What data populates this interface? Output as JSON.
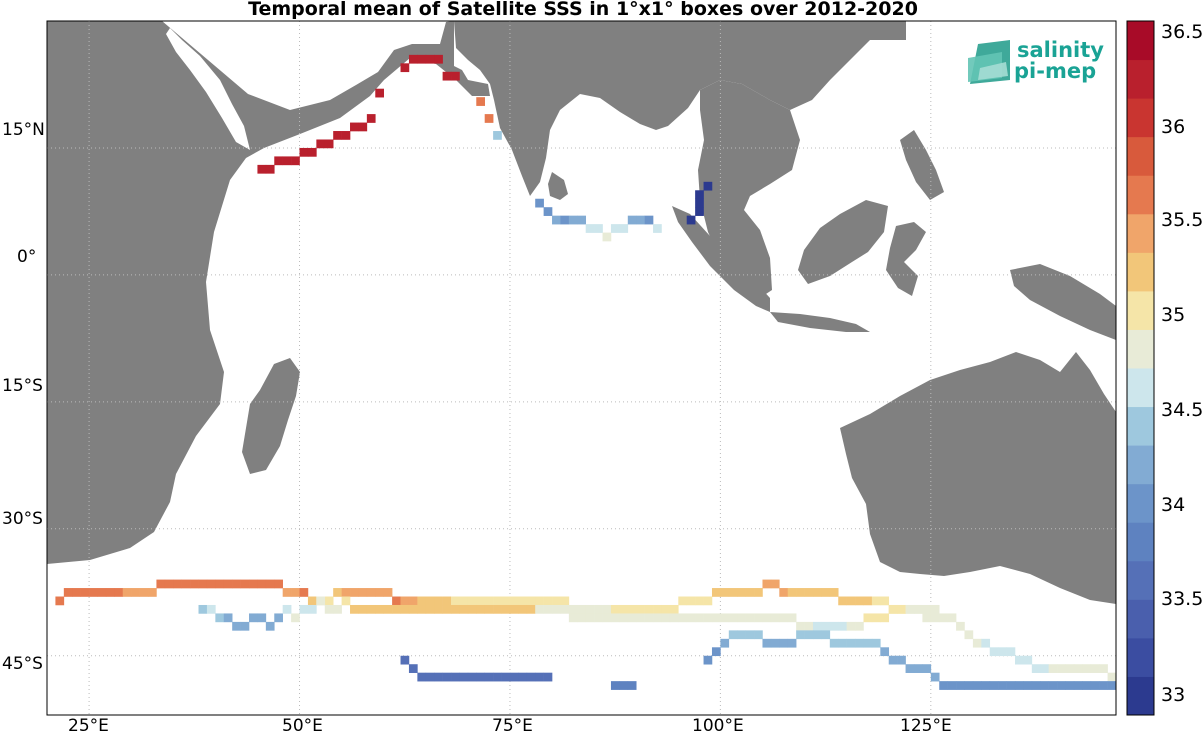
{
  "title": "Temporal mean of Satellite SSS in 1°x1° boxes over 2012-2020",
  "logo": {
    "line1": "salinity",
    "line2": "pi-mep"
  },
  "lat_labels": [
    "15°N",
    "0°",
    "15°S",
    "30°S",
    "45°S"
  ],
  "lon_labels": [
    "25°E",
    "50°E",
    "75°E",
    "100°E",
    "125°E"
  ],
  "colorbar": {
    "labels": [
      "36.5",
      "36",
      "35.5",
      "35",
      "34.5",
      "34",
      "33.5",
      "33"
    ],
    "range": [
      32.9,
      36.6
    ],
    "colors": [
      "#2c3a8f",
      "#3b4da1",
      "#4a5fad",
      "#5570b7",
      "#5e82c0",
      "#6c94c9",
      "#82abd3",
      "#9ec8de",
      "#cde6ec",
      "#e8ebd7",
      "#f5e5a8",
      "#f2c679",
      "#f0a56a",
      "#e5794f",
      "#d85a3c",
      "#c93530",
      "#b9202d",
      "#a80b28"
    ]
  },
  "map": {
    "land_color": "#808080",
    "lon_range": [
      20,
      147
    ],
    "lat_range": [
      -52,
      30
    ],
    "grid": "dotted"
  },
  "sss_cells": {
    "northwest_arabian_sea_coast": [
      [
        45,
        12,
        36.3
      ],
      [
        46,
        12,
        36.3
      ],
      [
        47,
        13,
        36.3
      ],
      [
        48,
        13,
        36.3
      ],
      [
        49,
        13,
        36.3
      ],
      [
        50,
        14,
        36.3
      ],
      [
        51,
        14,
        36.3
      ],
      [
        52,
        15,
        36.3
      ],
      [
        53,
        15,
        36.3
      ],
      [
        54,
        16,
        36.3
      ],
      [
        55,
        16,
        36.3
      ],
      [
        56,
        17,
        36.3
      ],
      [
        57,
        17,
        36.3
      ],
      [
        58,
        18,
        36.3
      ],
      [
        59,
        21,
        36.3
      ],
      [
        62,
        24,
        36.3
      ],
      [
        63,
        25,
        36.3
      ],
      [
        64,
        25,
        36.3
      ],
      [
        65,
        25,
        36.3
      ],
      [
        66,
        25,
        36.3
      ],
      [
        67,
        23,
        36.3
      ],
      [
        68,
        23,
        36.3
      ]
    ],
    "west_india_coast": [
      [
        71,
        20,
        35.7
      ],
      [
        72,
        18,
        35.7
      ],
      [
        73,
        16,
        34.5
      ]
    ],
    "sri_lanka_south": [
      [
        78,
        8,
        34.1
      ],
      [
        79,
        7,
        34.1
      ],
      [
        80,
        6,
        34.3
      ]
    ],
    "andaman_coast": [
      [
        97,
        9,
        33.1
      ],
      [
        98,
        10,
        33.1
      ],
      [
        97,
        8,
        33.1
      ],
      [
        97,
        7,
        33.1
      ],
      [
        96,
        6,
        33.1
      ]
    ],
    "bay_of_bengal_south": [
      [
        81,
        6,
        34.1
      ],
      [
        82,
        6,
        34.3
      ],
      [
        83,
        6,
        34.3
      ],
      [
        84,
        5,
        34.6
      ],
      [
        85,
        5,
        34.6
      ],
      [
        86,
        4,
        34.8
      ],
      [
        87,
        5,
        34.6
      ],
      [
        88,
        5,
        34.6
      ],
      [
        89,
        6,
        34.2
      ],
      [
        90,
        6,
        34.2
      ],
      [
        91,
        6,
        34.1
      ],
      [
        92,
        5,
        34.6
      ]
    ],
    "southern_frontal_band_north": [
      [
        21,
        -39,
        35.6
      ],
      [
        22,
        -38,
        35.6
      ],
      [
        23,
        -38,
        35.6
      ],
      [
        24,
        -38,
        35.6
      ],
      [
        25,
        -38,
        35.6
      ],
      [
        26,
        -38,
        35.6
      ],
      [
        27,
        -38,
        35.6
      ],
      [
        28,
        -38,
        35.6
      ],
      [
        29,
        -38,
        35.4
      ],
      [
        30,
        -38,
        35.4
      ],
      [
        31,
        -38,
        35.4
      ],
      [
        32,
        -38,
        35.4
      ],
      [
        33,
        -37,
        35.6
      ],
      [
        34,
        -37,
        35.6
      ],
      [
        35,
        -37,
        35.6
      ],
      [
        36,
        -37,
        35.6
      ],
      [
        37,
        -37,
        35.6
      ],
      [
        38,
        -37,
        35.6
      ],
      [
        39,
        -37,
        35.6
      ],
      [
        40,
        -37,
        35.6
      ],
      [
        41,
        -37,
        35.6
      ],
      [
        42,
        -37,
        35.6
      ],
      [
        43,
        -37,
        35.6
      ],
      [
        44,
        -37,
        35.6
      ],
      [
        45,
        -37,
        35.6
      ],
      [
        46,
        -37,
        35.6
      ],
      [
        47,
        -37,
        35.6
      ],
      [
        48,
        -38,
        35.4
      ],
      [
        49,
        -38,
        35.4
      ],
      [
        50,
        -38,
        35.6
      ],
      [
        51,
        -39,
        35.2
      ],
      [
        52,
        -39,
        34.8
      ],
      [
        53,
        -39,
        35.1
      ],
      [
        54,
        -38,
        35.2
      ],
      [
        55,
        -38,
        35.4
      ],
      [
        56,
        -38,
        35.4
      ],
      [
        57,
        -38,
        35.4
      ],
      [
        58,
        -38,
        35.4
      ],
      [
        59,
        -38,
        35.4
      ],
      [
        60,
        -38,
        35.4
      ],
      [
        61,
        -39,
        35.6
      ],
      [
        62,
        -39,
        35.4
      ],
      [
        63,
        -39,
        35.4
      ],
      [
        64,
        -39,
        35.3
      ],
      [
        65,
        -39,
        35.3
      ],
      [
        66,
        -39,
        35.3
      ],
      [
        67,
        -39,
        35.3
      ],
      [
        68,
        -39,
        35.1
      ],
      [
        69,
        -39,
        35.1
      ],
      [
        70,
        -39,
        35.1
      ],
      [
        71,
        -39,
        35.1
      ],
      [
        72,
        -39,
        35.1
      ],
      [
        73,
        -39,
        35.1
      ],
      [
        74,
        -39,
        35.1
      ],
      [
        75,
        -39,
        35.1
      ],
      [
        76,
        -39,
        35.1
      ],
      [
        77,
        -39,
        35.1
      ],
      [
        78,
        -39,
        35.1
      ],
      [
        79,
        -39,
        35.1
      ],
      [
        80,
        -39,
        35.1
      ],
      [
        81,
        -39,
        35.1
      ]
    ],
    "southern_frontal_band_middle": [
      [
        82,
        -40,
        34.9
      ],
      [
        83,
        -40,
        34.9
      ],
      [
        84,
        -40,
        34.9
      ],
      [
        85,
        -40,
        34.9
      ],
      [
        86,
        -40,
        34.9
      ],
      [
        87,
        -40,
        35.1
      ],
      [
        88,
        -40,
        35.1
      ],
      [
        89,
        -40,
        35.1
      ],
      [
        90,
        -40,
        35.1
      ],
      [
        91,
        -40,
        35.1
      ],
      [
        92,
        -40,
        35.1
      ],
      [
        93,
        -40,
        35.1
      ],
      [
        94,
        -40,
        35.1
      ],
      [
        95,
        -39,
        35.1
      ],
      [
        96,
        -39,
        35.1
      ],
      [
        97,
        -39,
        35.1
      ],
      [
        98,
        -39,
        35.1
      ],
      [
        99,
        -38,
        35.2
      ],
      [
        100,
        -38,
        35.2
      ],
      [
        101,
        -38,
        35.3
      ],
      [
        102,
        -38,
        35.3
      ],
      [
        103,
        -38,
        35.3
      ],
      [
        104,
        -38,
        35.3
      ],
      [
        105,
        -37,
        35.5
      ],
      [
        106,
        -37,
        35.5
      ],
      [
        107,
        -38,
        35.4
      ],
      [
        108,
        -38,
        35.3
      ],
      [
        109,
        -38,
        35.3
      ],
      [
        110,
        -38,
        35.3
      ],
      [
        111,
        -38,
        35.3
      ],
      [
        112,
        -38,
        35.3
      ],
      [
        113,
        -38,
        35.3
      ],
      [
        114,
        -39,
        35.2
      ],
      [
        115,
        -39,
        35.2
      ],
      [
        116,
        -39,
        35.2
      ],
      [
        117,
        -39,
        35.2
      ],
      [
        118,
        -39,
        35.1
      ],
      [
        119,
        -39,
        35.1
      ],
      [
        120,
        -40,
        35.1
      ],
      [
        121,
        -40,
        35.1
      ],
      [
        122,
        -40,
        34.9
      ],
      [
        123,
        -40,
        34.9
      ],
      [
        124,
        -41,
        34.9
      ],
      [
        125,
        -41,
        34.9
      ]
    ],
    "southern_band_lower": [
      [
        38,
        -40,
        34.5
      ],
      [
        39,
        -40,
        34.6
      ],
      [
        40,
        -41,
        34.4
      ],
      [
        41,
        -41,
        34.3
      ],
      [
        42,
        -42,
        34.3
      ],
      [
        43,
        -42,
        34.3
      ],
      [
        44,
        -41,
        34.3
      ],
      [
        45,
        -41,
        34.3
      ],
      [
        46,
        -42,
        34.3
      ],
      [
        47,
        -41,
        34.3
      ],
      [
        48,
        -40,
        34.6
      ],
      [
        49,
        -41,
        34.8
      ],
      [
        50,
        -40,
        34.6
      ],
      [
        51,
        -40,
        34.6
      ],
      [
        52,
        -39,
        34.8
      ],
      [
        53,
        -40,
        34.9
      ],
      [
        54,
        -40,
        34.8
      ],
      [
        55,
        -39,
        35.1
      ],
      [
        56,
        -40,
        35.3
      ],
      [
        57,
        -40,
        35.3
      ],
      [
        58,
        -40,
        35.3
      ],
      [
        59,
        -40,
        35.3
      ],
      [
        60,
        -40,
        35.3
      ],
      [
        61,
        -40,
        35.3
      ],
      [
        62,
        -40,
        35.3
      ],
      [
        63,
        -40,
        35.3
      ],
      [
        64,
        -40,
        35.3
      ],
      [
        65,
        -40,
        35.3
      ],
      [
        66,
        -40,
        35.3
      ],
      [
        67,
        -40,
        35.3
      ],
      [
        68,
        -40,
        35.3
      ],
      [
        69,
        -40,
        35.3
      ],
      [
        70,
        -40,
        35.3
      ],
      [
        71,
        -40,
        35.3
      ],
      [
        72,
        -40,
        35.3
      ],
      [
        73,
        -40,
        35.3
      ],
      [
        74,
        -40,
        35.3
      ],
      [
        75,
        -40,
        35.3
      ],
      [
        76,
        -40,
        35.3
      ],
      [
        77,
        -40,
        35.3
      ],
      [
        78,
        -40,
        34.9
      ],
      [
        79,
        -40,
        34.9
      ],
      [
        80,
        -40,
        34.9
      ],
      [
        81,
        -40,
        34.9
      ],
      [
        82,
        -41,
        34.9
      ],
      [
        83,
        -41,
        34.9
      ],
      [
        84,
        -41,
        34.9
      ],
      [
        85,
        -41,
        34.9
      ],
      [
        86,
        -41,
        34.9
      ],
      [
        87,
        -41,
        34.9
      ],
      [
        88,
        -41,
        34.9
      ],
      [
        89,
        -41,
        34.9
      ],
      [
        90,
        -41,
        34.9
      ],
      [
        91,
        -41,
        34.9
      ],
      [
        92,
        -41,
        34.9
      ],
      [
        93,
        -41,
        34.9
      ],
      [
        94,
        -41,
        34.9
      ],
      [
        95,
        -41,
        34.9
      ],
      [
        96,
        -41,
        34.9
      ],
      [
        97,
        -41,
        34.9
      ],
      [
        98,
        -41,
        34.9
      ],
      [
        99,
        -41,
        34.9
      ],
      [
        100,
        -41,
        34.9
      ],
      [
        101,
        -41,
        34.9
      ],
      [
        102,
        -41,
        34.9
      ],
      [
        103,
        -41,
        34.9
      ],
      [
        104,
        -41,
        34.9
      ],
      [
        105,
        -41,
        34.9
      ],
      [
        106,
        -41,
        34.9
      ],
      [
        107,
        -41,
        34.9
      ],
      [
        108,
        -41,
        34.9
      ],
      [
        109,
        -42,
        34.9
      ],
      [
        110,
        -42,
        34.9
      ],
      [
        111,
        -42,
        34.7
      ],
      [
        112,
        -42,
        34.7
      ],
      [
        113,
        -42,
        34.7
      ],
      [
        114,
        -42,
        34.7
      ],
      [
        115,
        -42,
        34.9
      ],
      [
        116,
        -42,
        34.9
      ],
      [
        117,
        -41,
        35.1
      ],
      [
        118,
        -41,
        35.1
      ],
      [
        119,
        -41,
        35.1
      ],
      [
        120,
        -40,
        35.1
      ],
      [
        121,
        -40,
        35.1
      ],
      [
        122,
        -40,
        34.9
      ],
      [
        123,
        -40,
        34.9
      ],
      [
        124,
        -40,
        34.9
      ],
      [
        125,
        -40,
        34.9
      ],
      [
        126,
        -41,
        34.9
      ],
      [
        127,
        -41,
        34.9
      ],
      [
        128,
        -42,
        34.9
      ],
      [
        129,
        -43,
        34.9
      ],
      [
        130,
        -44,
        34.9
      ],
      [
        131,
        -44,
        34.7
      ],
      [
        132,
        -45,
        34.7
      ],
      [
        133,
        -45,
        34.7
      ],
      [
        134,
        -45,
        34.7
      ],
      [
        135,
        -46,
        34.7
      ],
      [
        136,
        -46,
        34.7
      ],
      [
        137,
        -47,
        34.7
      ],
      [
        138,
        -47,
        34.7
      ],
      [
        139,
        -47,
        34.9
      ],
      [
        140,
        -47,
        34.9
      ],
      [
        141,
        -47,
        34.9
      ],
      [
        142,
        -47,
        34.9
      ],
      [
        143,
        -47,
        34.9
      ],
      [
        144,
        -47,
        34.9
      ],
      [
        145,
        -47,
        34.9
      ],
      [
        146,
        -48,
        34.9
      ]
    ],
    "southern_band_south": [
      [
        98,
        -46,
        34.1
      ],
      [
        99,
        -45,
        34.1
      ],
      [
        100,
        -44,
        34.3
      ],
      [
        101,
        -43,
        34.5
      ],
      [
        102,
        -43,
        34.5
      ],
      [
        103,
        -43,
        34.5
      ],
      [
        104,
        -43,
        34.5
      ],
      [
        105,
        -44,
        34.3
      ],
      [
        106,
        -44,
        34.3
      ],
      [
        107,
        -44,
        34.3
      ],
      [
        108,
        -44,
        34.3
      ],
      [
        109,
        -43,
        34.5
      ],
      [
        110,
        -43,
        34.5
      ],
      [
        111,
        -43,
        34.5
      ],
      [
        112,
        -43,
        34.5
      ],
      [
        113,
        -44,
        34.5
      ],
      [
        114,
        -44,
        34.5
      ],
      [
        115,
        -44,
        34.5
      ],
      [
        116,
        -44,
        34.5
      ],
      [
        117,
        -44,
        34.5
      ],
      [
        118,
        -44,
        34.5
      ],
      [
        119,
        -45,
        34.3
      ],
      [
        120,
        -46,
        34.3
      ],
      [
        121,
        -46,
        34.3
      ],
      [
        122,
        -47,
        34.3
      ],
      [
        123,
        -47,
        34.3
      ],
      [
        124,
        -47,
        34.3
      ],
      [
        125,
        -48,
        34.3
      ],
      [
        126,
        -49,
        34.1
      ],
      [
        127,
        -49,
        34.1
      ],
      [
        128,
        -49,
        34.1
      ],
      [
        129,
        -49,
        34.1
      ],
      [
        130,
        -49,
        34.1
      ],
      [
        131,
        -49,
        34.1
      ],
      [
        132,
        -49,
        34.1
      ],
      [
        133,
        -49,
        34.1
      ],
      [
        134,
        -49,
        34.1
      ],
      [
        135,
        -49,
        34.1
      ],
      [
        136,
        -49,
        34.1
      ],
      [
        137,
        -49,
        34.1
      ],
      [
        138,
        -49,
        34.1
      ],
      [
        139,
        -49,
        34.1
      ],
      [
        140,
        -49,
        34.1
      ],
      [
        141,
        -49,
        34.1
      ],
      [
        142,
        -49,
        34.1
      ],
      [
        143,
        -49,
        34.1
      ],
      [
        144,
        -49,
        34.1
      ],
      [
        145,
        -49,
        34.1
      ],
      [
        146,
        -49,
        34.1
      ]
    ],
    "kerguelen_area": [
      [
        62,
        -46,
        33.7
      ],
      [
        63,
        -47,
        33.7
      ],
      [
        64,
        -48,
        33.7
      ],
      [
        65,
        -48,
        33.7
      ],
      [
        66,
        -48,
        33.7
      ],
      [
        67,
        -48,
        33.7
      ],
      [
        68,
        -48,
        33.7
      ],
      [
        69,
        -48,
        33.7
      ],
      [
        70,
        -48,
        33.7
      ],
      [
        71,
        -48,
        33.7
      ],
      [
        72,
        -48,
        33.7
      ],
      [
        73,
        -48,
        33.7
      ],
      [
        74,
        -48,
        33.7
      ],
      [
        75,
        -48,
        33.7
      ],
      [
        76,
        -48,
        33.7
      ],
      [
        77,
        -48,
        33.7
      ],
      [
        78,
        -48,
        33.7
      ],
      [
        79,
        -48,
        33.7
      ],
      [
        87,
        -49,
        33.9
      ],
      [
        88,
        -49,
        33.9
      ],
      [
        89,
        -49,
        33.9
      ]
    ]
  }
}
